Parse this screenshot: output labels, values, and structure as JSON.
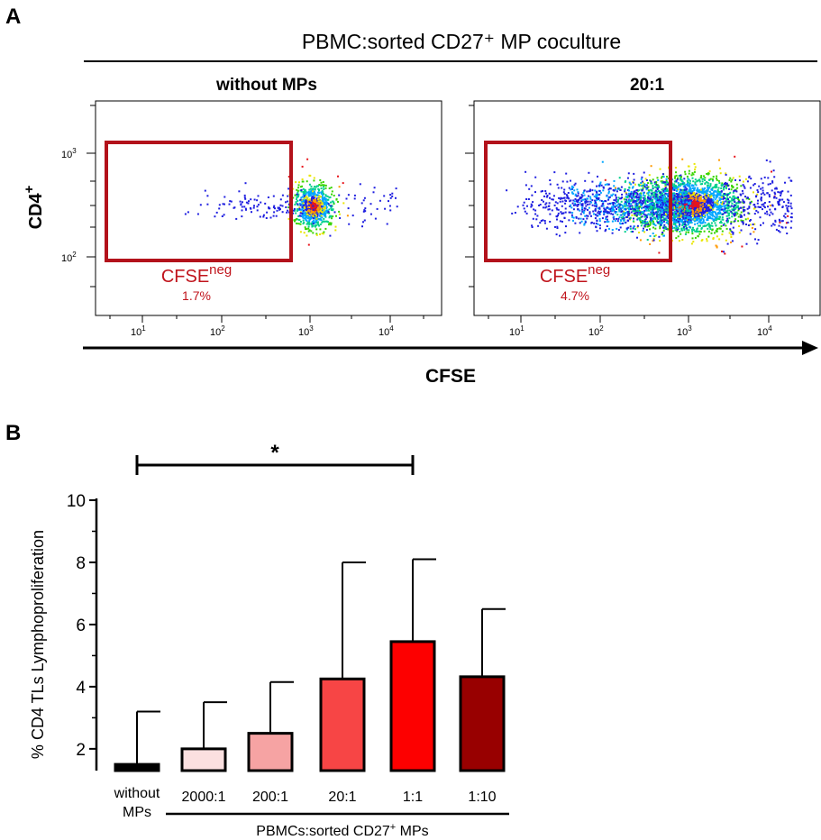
{
  "panel_a": {
    "letter": "A",
    "header": "PBMC:sorted CD27⁺ MP coculture",
    "y_axis_label": "CD4",
    "y_axis_sup": "+",
    "x_axis_label": "CFSE",
    "plots": [
      {
        "title": "without MPs",
        "gate_label": "CFSE",
        "gate_sup": "neg",
        "gate_percent": "1.7%",
        "y_ticks": [
          {
            "base": "10",
            "exp": "3"
          },
          {
            "base": "10",
            "exp": "2"
          }
        ],
        "x_ticks": [
          {
            "base": "10",
            "exp": "1"
          },
          {
            "base": "10",
            "exp": "2"
          },
          {
            "base": "10",
            "exp": "3"
          },
          {
            "base": "10",
            "exp": "4"
          }
        ]
      },
      {
        "title": "20:1",
        "gate_label": "CFSE",
        "gate_sup": "neg",
        "gate_percent": "4.7%",
        "y_ticks": [
          {
            "base": "10",
            "exp": "3"
          },
          {
            "base": "10",
            "exp": "2"
          }
        ],
        "x_ticks": [
          {
            "base": "10",
            "exp": "1"
          },
          {
            "base": "10",
            "exp": "2"
          },
          {
            "base": "10",
            "exp": "3"
          },
          {
            "base": "10",
            "exp": "4"
          }
        ]
      }
    ],
    "colors": {
      "gate": "#b3121b",
      "gate_text": "#c0141c"
    }
  },
  "panel_b": {
    "letter": "B",
    "significance_mark": "*"
  },
  "chart_data": {
    "type": "bar",
    "title": "",
    "ylabel": "% CD4 TLs Lymphoproliferation",
    "xlabel": "PBMCs:sorted CD27⁺ MPs",
    "categories": [
      "without MPs",
      "2000:1",
      "200:1",
      "20:1",
      "1:1",
      "1:10"
    ],
    "values": [
      1.5,
      2.0,
      2.5,
      4.25,
      5.45,
      4.32
    ],
    "error_upper": [
      3.2,
      3.5,
      4.15,
      8.0,
      8.1,
      6.5
    ],
    "bar_colors": [
      "#000000",
      "#fbe0e0",
      "#f6a3a3",
      "#f74545",
      "#fd0000",
      "#980000"
    ],
    "ylim": [
      1.3,
      10
    ],
    "y_ticks": [
      2,
      4,
      6,
      8,
      10
    ],
    "significance": {
      "from": "without MPs",
      "to": "1:1",
      "label": "*"
    }
  }
}
